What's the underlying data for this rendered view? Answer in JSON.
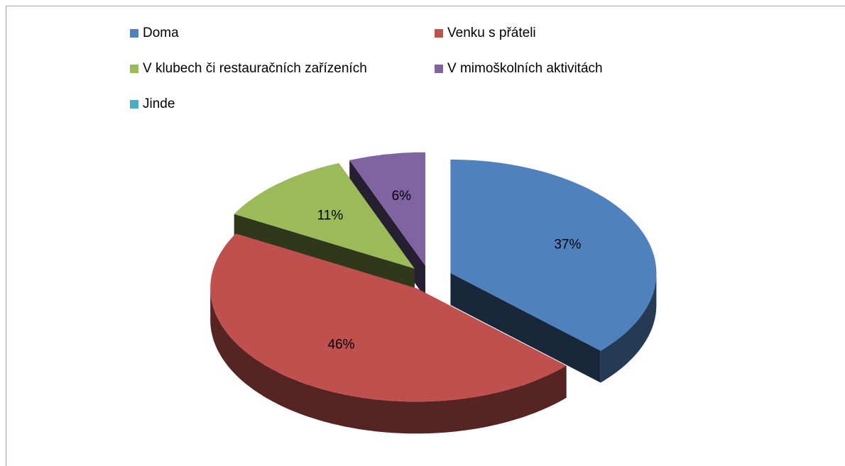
{
  "chart_data": {
    "type": "pie",
    "categories": [
      "Doma",
      "Venku s přáteli",
      "V klubech či restauračních zařízeních",
      "V mimoškolních aktivitách",
      "Jinde"
    ],
    "values": [
      37,
      46,
      11,
      6,
      0
    ],
    "value_labels": [
      "37%",
      "46%",
      "11%",
      "6%",
      null
    ],
    "colors": [
      "#4f81bd",
      "#c0504d",
      "#9bbb59",
      "#8064a2",
      "#4bacc6"
    ],
    "legend": "top"
  }
}
